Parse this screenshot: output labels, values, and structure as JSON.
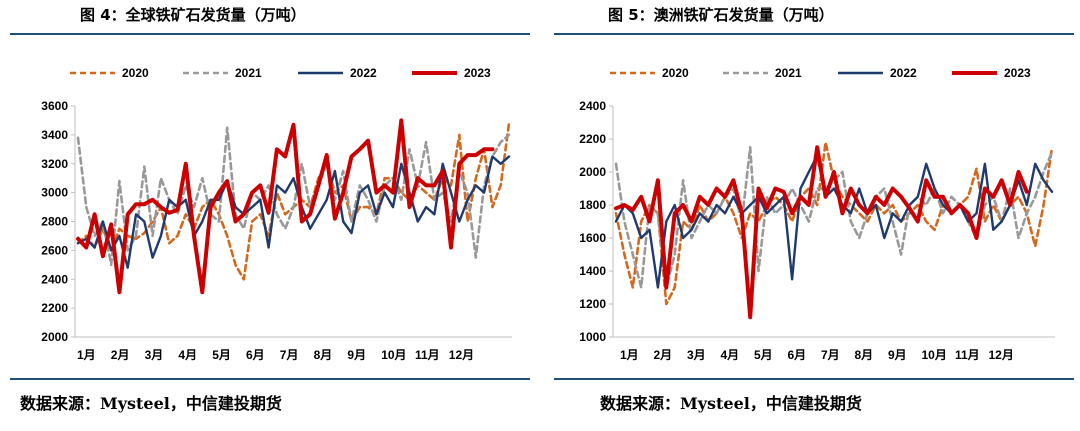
{
  "colors": {
    "s2020": "#d2691e",
    "s2021": "#999999",
    "s2022": "#1f3a6e",
    "s2023": "#cc0000",
    "rule": "#1f4e79"
  },
  "chart_data": [
    {
      "type": "line",
      "title": "图 4：全球铁矿石发货量（万吨）",
      "source": "数据来源：Mysteel，中信建投期货",
      "xlabel": "",
      "ylabel": "",
      "ylim": [
        2000,
        3600
      ],
      "yticks": [
        "3600",
        "3400",
        "3200",
        "3000",
        "2800",
        "2600",
        "2400",
        "2200",
        "2000"
      ],
      "ytick_values": [
        3600,
        3400,
        3200,
        3000,
        2800,
        2600,
        2400,
        2200,
        2000
      ],
      "months": [
        "1月",
        "2月",
        "3月",
        "4月",
        "5月",
        "6月",
        "7月",
        "8月",
        "9月",
        "10月",
        "11月",
        "12月"
      ],
      "weeks": 53,
      "series": [
        {
          "name": "2020",
          "style": "dashed",
          "values": [
            2650,
            2700,
            2620,
            2750,
            2600,
            2750,
            2700,
            2680,
            2720,
            2800,
            2900,
            2650,
            2700,
            2850,
            2750,
            2900,
            2950,
            2850,
            2700,
            2500,
            2400,
            2800,
            2850,
            2700,
            3000,
            2850,
            2900,
            2950,
            2900,
            3100,
            3200,
            3000,
            3050,
            2800,
            2900,
            2900,
            2850,
            3100,
            3100,
            3000,
            2950,
            3050,
            3000,
            2950,
            3100,
            3050,
            3400,
            2800,
            3100,
            3300,
            2900,
            3050,
            3480
          ]
        },
        {
          "name": "2021",
          "style": "dashed",
          "values": [
            3380,
            2900,
            2700,
            2800,
            2500,
            3080,
            2600,
            2700,
            3180,
            2700,
            3100,
            2950,
            2850,
            3050,
            2900,
            3100,
            2850,
            2800,
            3450,
            2850,
            2750,
            3000,
            2950,
            3050,
            2850,
            2750,
            2900,
            3200,
            2900,
            3050,
            3200,
            2950,
            3150,
            2800,
            3050,
            2950,
            2800,
            3050,
            3100,
            2950,
            3300,
            3050,
            3350,
            2950,
            3000,
            2800,
            3150,
            3000,
            2550,
            3050,
            3250,
            3350,
            3400
          ]
        },
        {
          "name": "2022",
          "style": "solid",
          "values": [
            2650,
            2680,
            2620,
            2800,
            2600,
            2700,
            2480,
            2850,
            2800,
            2550,
            2700,
            2950,
            2900,
            2950,
            2700,
            2800,
            2950,
            2950,
            3080,
            2900,
            2850,
            2900,
            2950,
            2620,
            3050,
            3000,
            3100,
            2900,
            2750,
            2850,
            2950,
            3150,
            2800,
            2720,
            3000,
            3050,
            2850,
            3000,
            2900,
            3200,
            3000,
            2800,
            2900,
            2850,
            3200,
            3000,
            2800,
            2950,
            3050,
            3000,
            3250,
            3200,
            3250
          ]
        },
        {
          "name": "2023",
          "style": "solid-bold",
          "values": [
            2680,
            2620,
            2850,
            2560,
            2780,
            2310,
            2850,
            2920,
            2920,
            2950,
            2900,
            2860,
            2880,
            3200,
            2700,
            2310,
            2900,
            3000,
            3080,
            2800,
            2850,
            3000,
            3050,
            2860,
            3300,
            3250,
            3470,
            2800,
            2850,
            3050,
            3260,
            2820,
            3000,
            3250,
            3300,
            3360,
            3000,
            3050,
            3000,
            3500,
            2900,
            3100,
            3050,
            3050,
            3150,
            2620,
            3200,
            3260,
            3260,
            3300,
            3300
          ]
        }
      ]
    },
    {
      "type": "line",
      "title": "图 5：澳洲铁矿石发货量（万吨）",
      "source": "数据来源：Mysteel，中信建投期货",
      "xlabel": "",
      "ylabel": "",
      "ylim": [
        1000,
        2400
      ],
      "yticks": [
        "2400",
        "2200",
        "2000",
        "1800",
        "1600",
        "1400",
        "1200",
        "1000"
      ],
      "ytick_values": [
        2400,
        2200,
        2000,
        1800,
        1600,
        1400,
        1200,
        1000
      ],
      "months": [
        "1月",
        "2月",
        "3月",
        "4月",
        "5月",
        "6月",
        "7月",
        "8月",
        "9月",
        "10月",
        "11月",
        "12月"
      ],
      "weeks": 53,
      "series": [
        {
          "name": "2020",
          "style": "dashed",
          "values": [
            1750,
            1500,
            1300,
            1700,
            1800,
            1750,
            1200,
            1300,
            1700,
            1650,
            1800,
            1700,
            1750,
            1850,
            1750,
            1600,
            1750,
            1700,
            1800,
            1850,
            1800,
            1700,
            1850,
            1900,
            1800,
            2180,
            1950,
            1850,
            1800,
            1750,
            1700,
            1800,
            1750,
            1800,
            1700,
            1750,
            1800,
            1700,
            1650,
            1800,
            1750,
            1800,
            1850,
            2020,
            1700,
            1800,
            1700,
            1800,
            1850,
            1750,
            1550,
            1800,
            2150
          ]
        },
        {
          "name": "2021",
          "style": "dashed",
          "values": [
            2050,
            1700,
            1500,
            1300,
            1800,
            1750,
            1300,
            1500,
            1950,
            1600,
            1700,
            1800,
            1750,
            1850,
            1900,
            1700,
            2150,
            1400,
            1850,
            1750,
            1800,
            1900,
            1800,
            1700,
            1900,
            1900,
            1950,
            2000,
            1700,
            1600,
            1750,
            1850,
            1900,
            1700,
            1500,
            1800,
            1850,
            1800,
            1900,
            1750,
            1850,
            1800,
            1700,
            1600,
            1800,
            1850,
            1700,
            1900,
            1600,
            1750,
            1850,
            2000,
            2120
          ]
        },
        {
          "name": "2022",
          "style": "solid",
          "values": [
            1700,
            1800,
            1750,
            1600,
            1650,
            1300,
            1700,
            1800,
            1600,
            1650,
            1750,
            1700,
            1800,
            1750,
            1850,
            1750,
            1800,
            1850,
            1750,
            1800,
            1850,
            1350,
            1900,
            2000,
            2100,
            1850,
            1900,
            1800,
            1750,
            1900,
            1750,
            1800,
            1600,
            1750,
            1700,
            1800,
            1850,
            2050,
            1900,
            1800,
            1750,
            1800,
            1700,
            1750,
            2050,
            1650,
            1700,
            1800,
            1950,
            1800,
            2050,
            1950,
            1880
          ]
        },
        {
          "name": "2023",
          "style": "solid-bold",
          "values": [
            1780,
            1800,
            1770,
            1850,
            1700,
            1950,
            1300,
            1750,
            1800,
            1700,
            1850,
            1800,
            1900,
            1850,
            1950,
            1750,
            1120,
            1900,
            1780,
            1900,
            1880,
            1750,
            1850,
            1800,
            2150,
            1850,
            2000,
            1750,
            1900,
            1800,
            1750,
            1850,
            1800,
            1900,
            1850,
            1780,
            1700,
            1950,
            1850,
            1850,
            1750,
            1800,
            1750,
            1600,
            1900,
            1850,
            1950,
            1800,
            2000,
            1880
          ]
        }
      ]
    }
  ]
}
